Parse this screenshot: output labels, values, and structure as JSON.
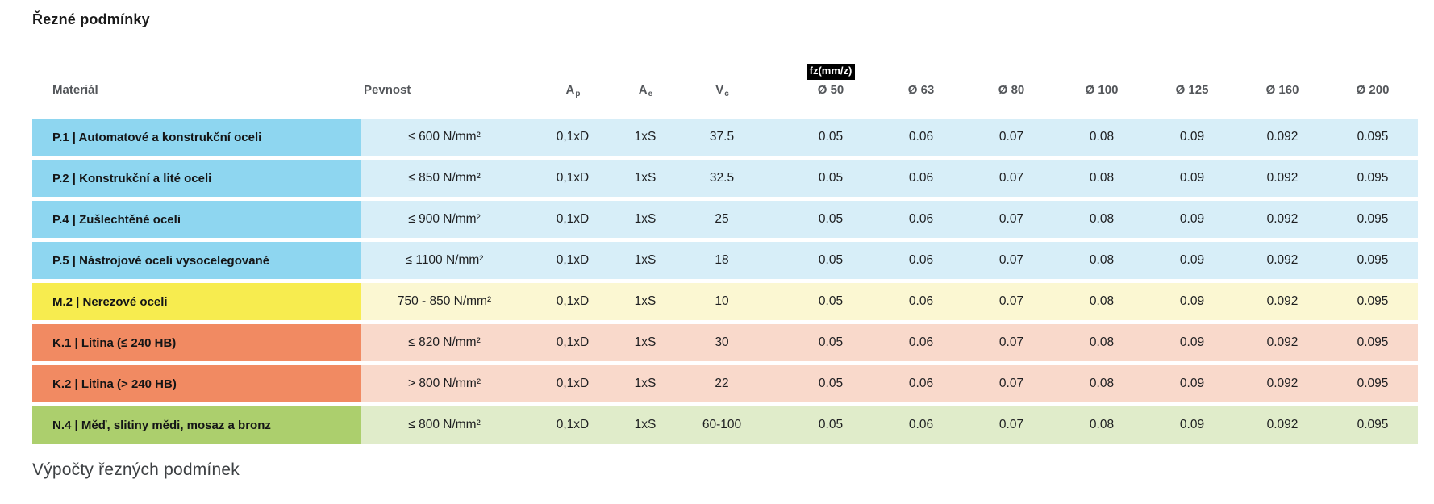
{
  "page": {
    "title": "Řezné podmínky",
    "footer": "Výpočty řezných podmínek"
  },
  "colors": {
    "blue": "#8ed6f0",
    "blue_light": "#d7eef8",
    "yellow": "#f7ec4f",
    "yellow_light": "#fbf7d2",
    "salmon": "#f18a62",
    "salmon_light": "#f9d9cb",
    "green": "#accf6d",
    "green_light": "#e0ecca",
    "header_text": "#53565a",
    "badge_bg": "#000000",
    "badge_text": "#ffffff"
  },
  "table": {
    "headers": {
      "material": "Materiál",
      "strength": "Pevnost",
      "ap": {
        "base": "A",
        "sub": "p"
      },
      "ae": {
        "base": "A",
        "sub": "e"
      },
      "vc": {
        "base": "V",
        "sub": "c"
      },
      "feed_badge": "fz(mm/z)",
      "diameters": [
        "Ø 50",
        "Ø 63",
        "Ø 80",
        "Ø 100",
        "Ø 125",
        "Ø 160",
        "Ø 200"
      ]
    },
    "rows": [
      {
        "group": "steel",
        "material": "P.1 | Automatové a konstrukční oceli",
        "strength": "≤ 600 N/mm²",
        "ap": "0,1xD",
        "ae": "1xS",
        "vc": "37.5",
        "fz": [
          "0.05",
          "0.06",
          "0.07",
          "0.08",
          "0.09",
          "0.092",
          "0.095"
        ]
      },
      {
        "group": "steel",
        "material": "P.2 | Konstrukční a lité oceli",
        "strength": "≤ 850 N/mm²",
        "ap": "0,1xD",
        "ae": "1xS",
        "vc": "32.5",
        "fz": [
          "0.05",
          "0.06",
          "0.07",
          "0.08",
          "0.09",
          "0.092",
          "0.095"
        ]
      },
      {
        "group": "steel",
        "material": "P.4 | Zušlechtěné oceli",
        "strength": "≤ 900 N/mm²",
        "ap": "0,1xD",
        "ae": "1xS",
        "vc": "25",
        "fz": [
          "0.05",
          "0.06",
          "0.07",
          "0.08",
          "0.09",
          "0.092",
          "0.095"
        ]
      },
      {
        "group": "steel",
        "material": "P.5 | Nástrojové oceli vysocelegované",
        "strength": "≤ 1100 N/mm²",
        "ap": "0,1xD",
        "ae": "1xS",
        "vc": "18",
        "fz": [
          "0.05",
          "0.06",
          "0.07",
          "0.08",
          "0.09",
          "0.092",
          "0.095"
        ]
      },
      {
        "group": "stainless",
        "material": "M.2 | Nerezové oceli",
        "strength": "750 - 850 N/mm²",
        "ap": "0,1xD",
        "ae": "1xS",
        "vc": "10",
        "fz": [
          "0.05",
          "0.06",
          "0.07",
          "0.08",
          "0.09",
          "0.092",
          "0.095"
        ]
      },
      {
        "group": "castiron",
        "material": "K.1 | Litina (≤ 240 HB)",
        "strength": "≤ 820 N/mm²",
        "ap": "0,1xD",
        "ae": "1xS",
        "vc": "30",
        "fz": [
          "0.05",
          "0.06",
          "0.07",
          "0.08",
          "0.09",
          "0.092",
          "0.095"
        ]
      },
      {
        "group": "castiron",
        "material": "K.2 | Litina (> 240 HB)",
        "strength": "> 800 N/mm²",
        "ap": "0,1xD",
        "ae": "1xS",
        "vc": "22",
        "fz": [
          "0.05",
          "0.06",
          "0.07",
          "0.08",
          "0.09",
          "0.092",
          "0.095"
        ]
      },
      {
        "group": "nonferrous",
        "material": "N.4 | Měď, slitiny mědi, mosaz a bronz",
        "strength": "≤ 800 N/mm²",
        "ap": "0,1xD",
        "ae": "1xS",
        "vc": "60-100",
        "fz": [
          "0.05",
          "0.06",
          "0.07",
          "0.08",
          "0.09",
          "0.092",
          "0.095"
        ]
      }
    ]
  }
}
